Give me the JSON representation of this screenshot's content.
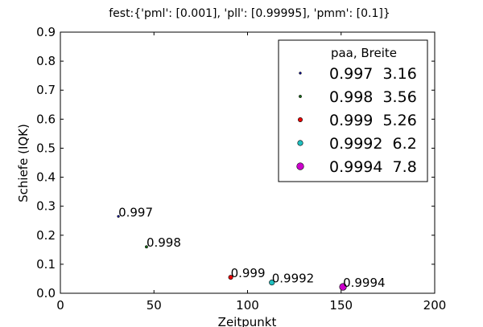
{
  "chart_data": {
    "type": "scatter",
    "title": "fest:{'pml': [0.001], 'pll': [0.99995], 'pmm': [0.1]}",
    "xlabel": "Zeitpunkt",
    "ylabel": "Schiefe (IQK)",
    "xlim": [
      0,
      200
    ],
    "ylim": [
      0,
      0.9
    ],
    "xticks": [
      "0",
      "50",
      "100",
      "150",
      "200"
    ],
    "xtick_values": [
      0,
      50,
      100,
      150,
      200
    ],
    "yticks": [
      "0.0",
      "0.1",
      "0.2",
      "0.3",
      "0.4",
      "0.5",
      "0.6",
      "0.7",
      "0.8",
      "0.9"
    ],
    "ytick_values": [
      0,
      0.1,
      0.2,
      0.3,
      0.4,
      0.5,
      0.6,
      0.7,
      0.8,
      0.9
    ],
    "grid": false,
    "legend": {
      "placement": "top-right",
      "header": "paa,    Breite"
    },
    "series": [
      {
        "name": "0.997  3.16",
        "label": "0.997",
        "x": 31,
        "y": 0.265,
        "color": "#0000aa",
        "marker_scale": 3.16
      },
      {
        "name": "0.998  3.56",
        "label": "0.998",
        "x": 46,
        "y": 0.16,
        "color": "#107010",
        "marker_scale": 3.56
      },
      {
        "name": "0.999  5.26",
        "label": "0.999",
        "x": 91,
        "y": 0.055,
        "color": "#ee0000",
        "marker_scale": 5.26
      },
      {
        "name": "0.9992  6.2",
        "label": "0.9992",
        "x": 113,
        "y": 0.037,
        "color": "#20c0c0",
        "marker_scale": 6.2
      },
      {
        "name": "0.9994  7.8",
        "label": "0.9994",
        "x": 151,
        "y": 0.022,
        "color": "#cc00cc",
        "marker_scale": 7.8
      }
    ]
  }
}
